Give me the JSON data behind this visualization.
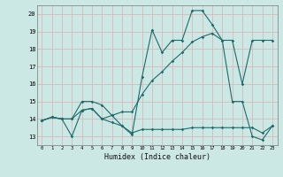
{
  "title": "",
  "xlabel": "Humidex (Indice chaleur)",
  "ylabel": "",
  "background_color": "#cce8e4",
  "grid_color": "#dbb8b8",
  "line_color": "#1a6b6b",
  "xlim": [
    -0.5,
    23.5
  ],
  "ylim": [
    12.5,
    20.5
  ],
  "xticks": [
    0,
    1,
    2,
    3,
    4,
    5,
    6,
    7,
    8,
    9,
    10,
    11,
    12,
    13,
    14,
    15,
    16,
    17,
    18,
    19,
    20,
    21,
    22,
    23
  ],
  "yticks": [
    13,
    14,
    15,
    16,
    17,
    18,
    19,
    20
  ],
  "series": [
    [
      13.9,
      14.1,
      14.0,
      13.0,
      14.5,
      14.6,
      14.0,
      13.8,
      13.6,
      13.2,
      13.4,
      13.4,
      13.4,
      13.4,
      13.4,
      13.5,
      13.5,
      13.5,
      13.5,
      13.5,
      13.5,
      13.5,
      13.2,
      13.6
    ],
    [
      13.9,
      14.1,
      14.0,
      14.0,
      14.5,
      14.6,
      14.0,
      14.2,
      13.6,
      13.1,
      16.4,
      19.1,
      17.8,
      18.5,
      18.5,
      20.2,
      20.2,
      19.4,
      18.5,
      15.0,
      15.0,
      13.0,
      12.8,
      13.6
    ],
    [
      13.9,
      14.1,
      14.0,
      14.0,
      15.0,
      15.0,
      14.8,
      14.2,
      14.4,
      14.4,
      15.4,
      16.2,
      16.7,
      17.3,
      17.8,
      18.4,
      18.7,
      18.9,
      18.5,
      18.5,
      16.0,
      18.5,
      18.5,
      18.5
    ]
  ]
}
